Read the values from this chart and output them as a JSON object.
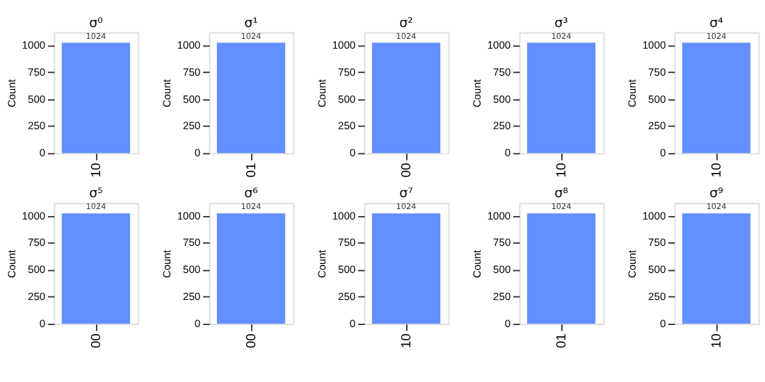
{
  "chart_data": [
    {
      "type": "bar",
      "title": "σ⁰",
      "ylabel": "Count",
      "categories": [
        "10"
      ],
      "values": [
        1024
      ],
      "color": "#648fff",
      "ylim": [
        0,
        1120
      ],
      "yticks": [
        0,
        250,
        500,
        750,
        1000
      ],
      "data_labels": true,
      "grid": false
    },
    {
      "type": "bar",
      "title": "σ¹",
      "ylabel": "Count",
      "categories": [
        "01"
      ],
      "values": [
        1024
      ],
      "color": "#648fff",
      "ylim": [
        0,
        1120
      ],
      "yticks": [
        0,
        250,
        500,
        750,
        1000
      ],
      "data_labels": true,
      "grid": false
    },
    {
      "type": "bar",
      "title": "σ²",
      "ylabel": "Count",
      "categories": [
        "00"
      ],
      "values": [
        1024
      ],
      "color": "#648fff",
      "ylim": [
        0,
        1120
      ],
      "yticks": [
        0,
        250,
        500,
        750,
        1000
      ],
      "data_labels": true,
      "grid": false
    },
    {
      "type": "bar",
      "title": "σ³",
      "ylabel": "Count",
      "categories": [
        "10"
      ],
      "values": [
        1024
      ],
      "color": "#648fff",
      "ylim": [
        0,
        1120
      ],
      "yticks": [
        0,
        250,
        500,
        750,
        1000
      ],
      "data_labels": true,
      "grid": false
    },
    {
      "type": "bar",
      "title": "σ⁴",
      "ylabel": "Count",
      "categories": [
        "10"
      ],
      "values": [
        1024
      ],
      "color": "#648fff",
      "ylim": [
        0,
        1120
      ],
      "yticks": [
        0,
        250,
        500,
        750,
        1000
      ],
      "data_labels": true,
      "grid": false
    },
    {
      "type": "bar",
      "title": "σ⁵",
      "ylabel": "Count",
      "categories": [
        "00"
      ],
      "values": [
        1024
      ],
      "color": "#648fff",
      "ylim": [
        0,
        1120
      ],
      "yticks": [
        0,
        250,
        500,
        750,
        1000
      ],
      "data_labels": true,
      "grid": false
    },
    {
      "type": "bar",
      "title": "σ⁶",
      "ylabel": "Count",
      "categories": [
        "00"
      ],
      "values": [
        1024
      ],
      "color": "#648fff",
      "ylim": [
        0,
        1120
      ],
      "yticks": [
        0,
        250,
        500,
        750,
        1000
      ],
      "data_labels": true,
      "grid": false
    },
    {
      "type": "bar",
      "title": "σ⁷",
      "ylabel": "Count",
      "categories": [
        "10"
      ],
      "values": [
        1024
      ],
      "color": "#648fff",
      "ylim": [
        0,
        1120
      ],
      "yticks": [
        0,
        250,
        500,
        750,
        1000
      ],
      "data_labels": true,
      "grid": false
    },
    {
      "type": "bar",
      "title": "σ⁸",
      "ylabel": "Count",
      "categories": [
        "01"
      ],
      "values": [
        1024
      ],
      "color": "#648fff",
      "ylim": [
        0,
        1120
      ],
      "yticks": [
        0,
        250,
        500,
        750,
        1000
      ],
      "data_labels": true,
      "grid": false
    },
    {
      "type": "bar",
      "title": "σ⁹",
      "ylabel": "Count",
      "categories": [
        "10"
      ],
      "values": [
        1024
      ],
      "color": "#648fff",
      "ylim": [
        0,
        1120
      ],
      "yticks": [
        0,
        250,
        500,
        750,
        1000
      ],
      "data_labels": true,
      "grid": false
    }
  ]
}
